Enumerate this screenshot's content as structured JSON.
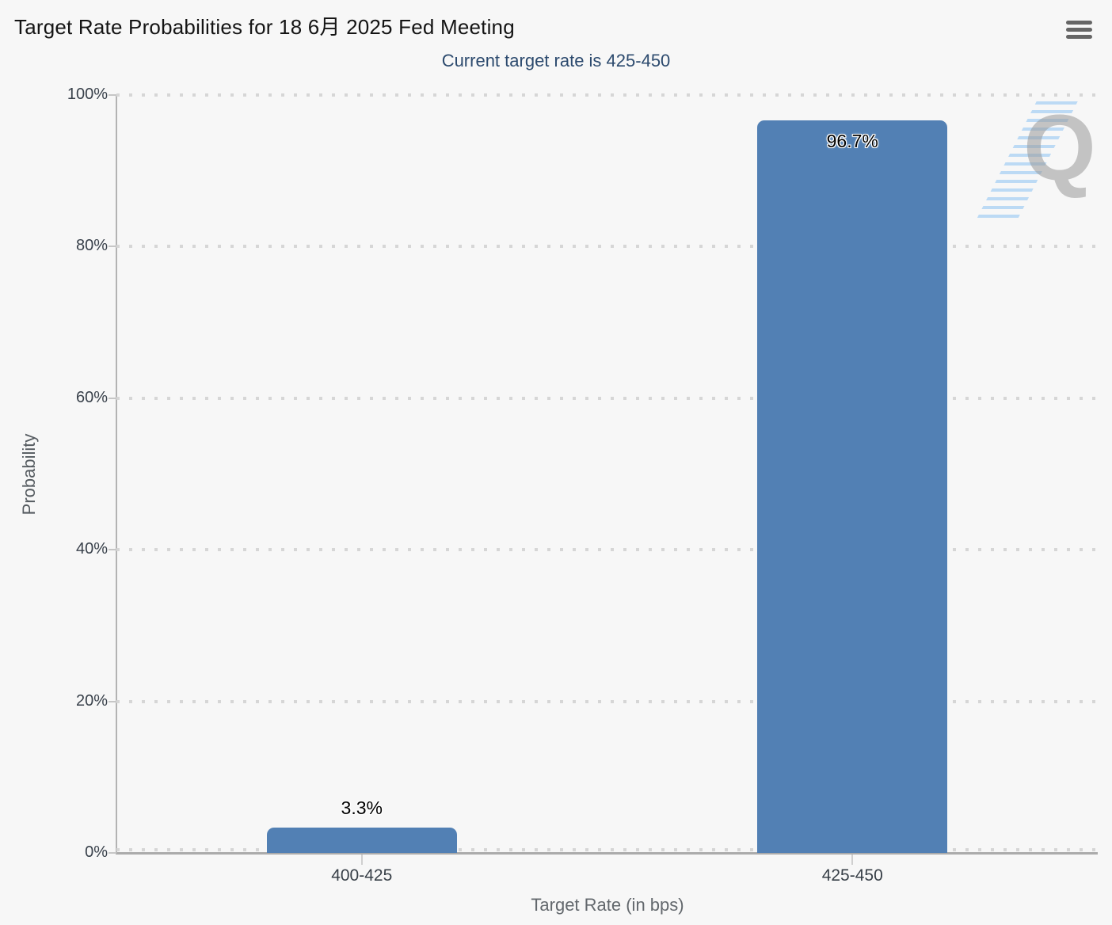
{
  "chart_data": {
    "type": "bar",
    "title": "Target Rate Probabilities for 18 6月 2025 Fed Meeting",
    "subtitle": "Current target rate is 425-450",
    "categories": [
      "400-425",
      "425-450"
    ],
    "values": [
      3.3,
      96.7
    ],
    "data_labels": [
      "3.3%",
      "96.7%"
    ],
    "xlabel": "Target Rate (in bps)",
    "ylabel": "Probability",
    "ylim": [
      0,
      100
    ],
    "ytick_interval": 20,
    "ytick_labels": [
      "0%",
      "20%",
      "40%",
      "60%",
      "80%",
      "100%"
    ],
    "grid": "dotted-horizontal",
    "legend": "none",
    "watermark": "Q",
    "colors": {
      "bar": "#5280b4",
      "background": "#f7f7f7",
      "title_text": "#141414",
      "subtitle_text": "#2c4a6e",
      "tick_text": "#39414b",
      "axis_title_text": "#60666b",
      "grid_dot": "#d6d6d6",
      "axis_line": "#ababab",
      "menu_icon": "#666666",
      "watermark_gray": "#9a9a9a",
      "watermark_blue": "#78b9f2"
    }
  }
}
